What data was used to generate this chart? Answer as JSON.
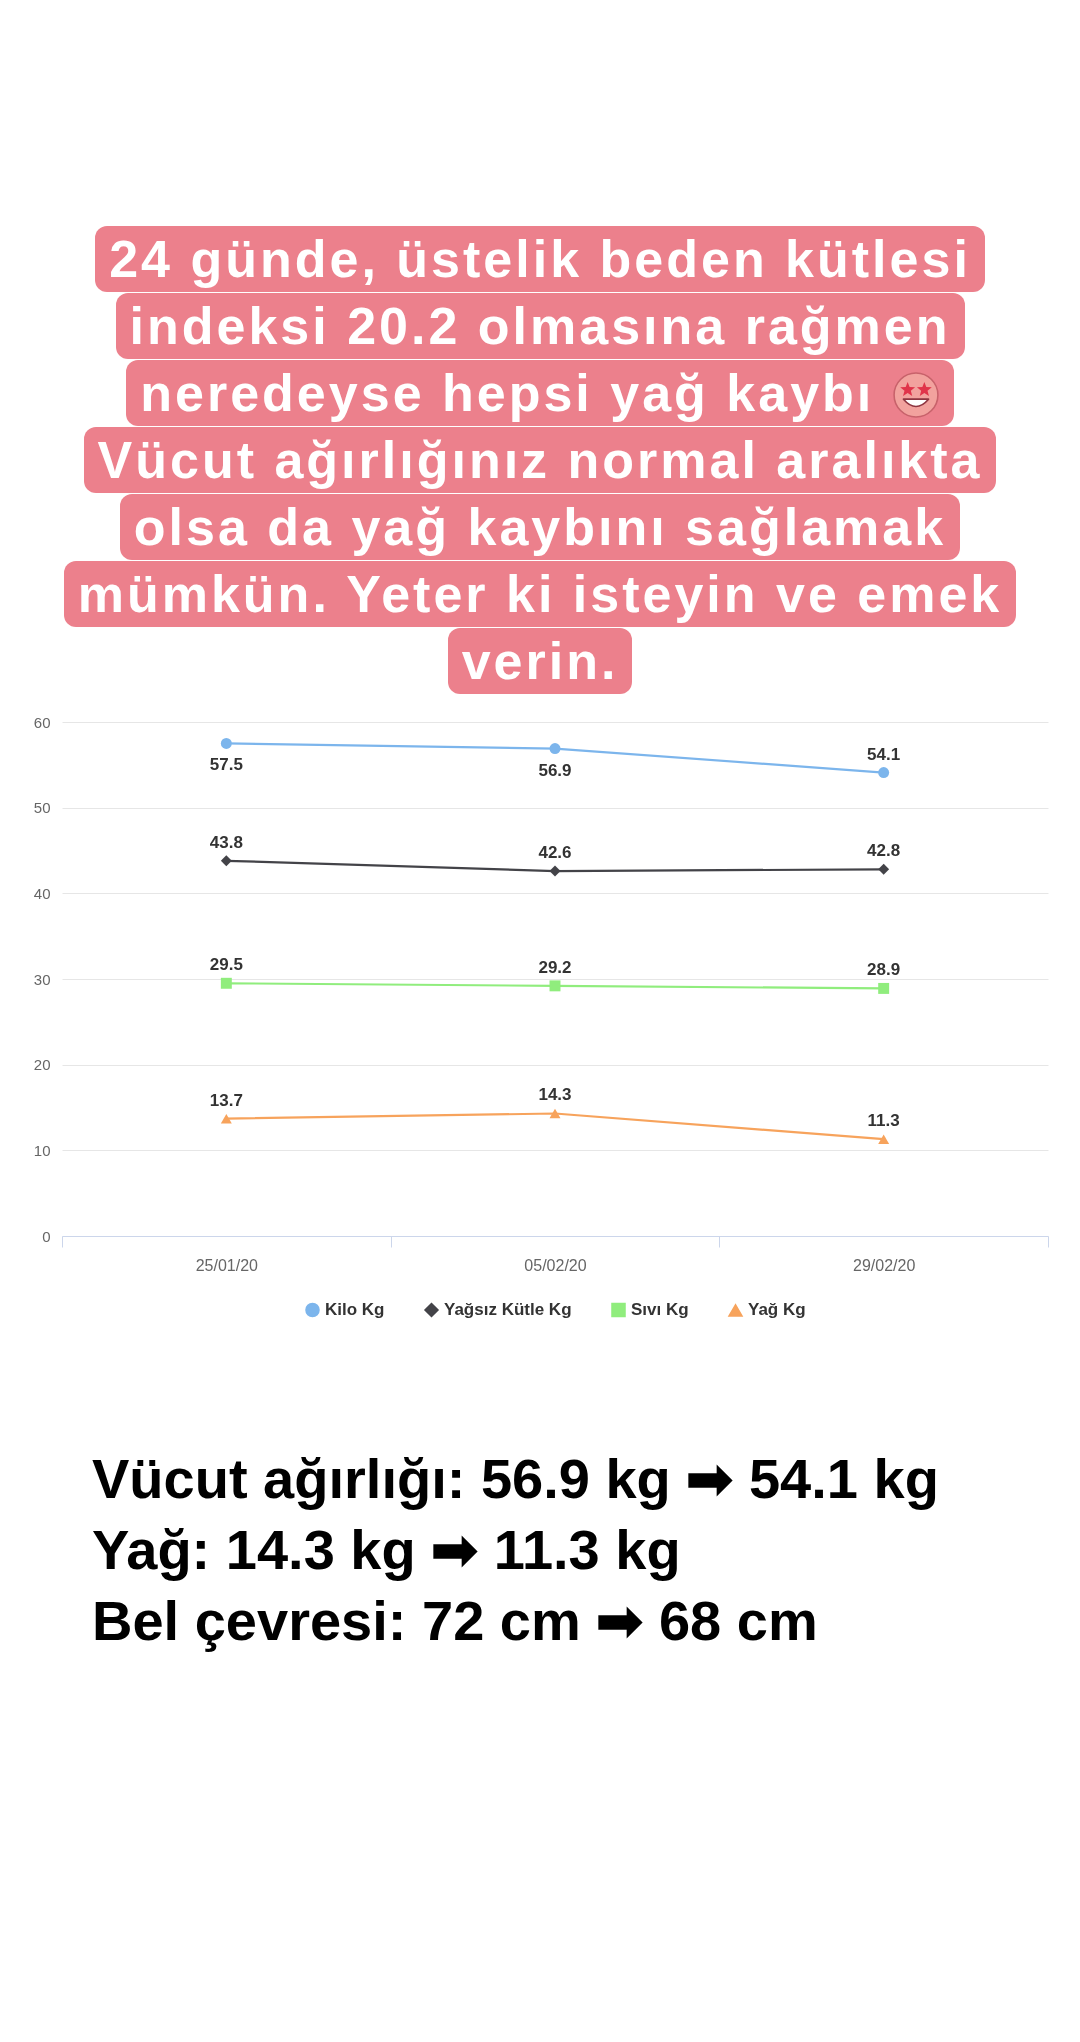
{
  "chart_data": {
    "type": "line",
    "title": "24 günde, üstelik beden kütlesi indeksi 20.2 olmasına rağmen neredeyse hepsi yağ kaybı",
    "subtitle": "Vücut ağırlığınız normal aralıkta olsa da yağ kaybını sağlamak mümkün. Yeter ki isteyin ve emek verin.",
    "categories": [
      "25/01/20",
      "05/02/20",
      "29/02/20"
    ],
    "series": [
      {
        "name": "Kilo Kg",
        "color": "#7cb5ec",
        "marker": "circle",
        "values": [
          57.5,
          56.9,
          54.1
        ]
      },
      {
        "name": "Yağsız Kütle Kg",
        "color": "#434348",
        "marker": "diamond",
        "values": [
          43.8,
          42.6,
          42.8
        ]
      },
      {
        "name": "Sıvı Kg",
        "color": "#90ed7d",
        "marker": "square",
        "values": [
          29.5,
          29.2,
          28.9
        ]
      },
      {
        "name": "Yağ Kg",
        "color": "#f7a35c",
        "marker": "triangle",
        "values": [
          13.7,
          14.3,
          11.3
        ]
      }
    ],
    "ylim": [
      0,
      60
    ],
    "yticks": [
      0,
      10,
      20,
      30,
      40,
      50,
      60
    ],
    "grid": "y",
    "legend": "bottom",
    "data_labels": true,
    "annotations": [
      "Vücut ağırlığı: 56.9 kg ➡ 54.1 kg",
      "Yağ: 14.3 kg ➡ 11.3 kg",
      "Bel çevresi: 72 cm ➡ 68 cm"
    ]
  }
}
